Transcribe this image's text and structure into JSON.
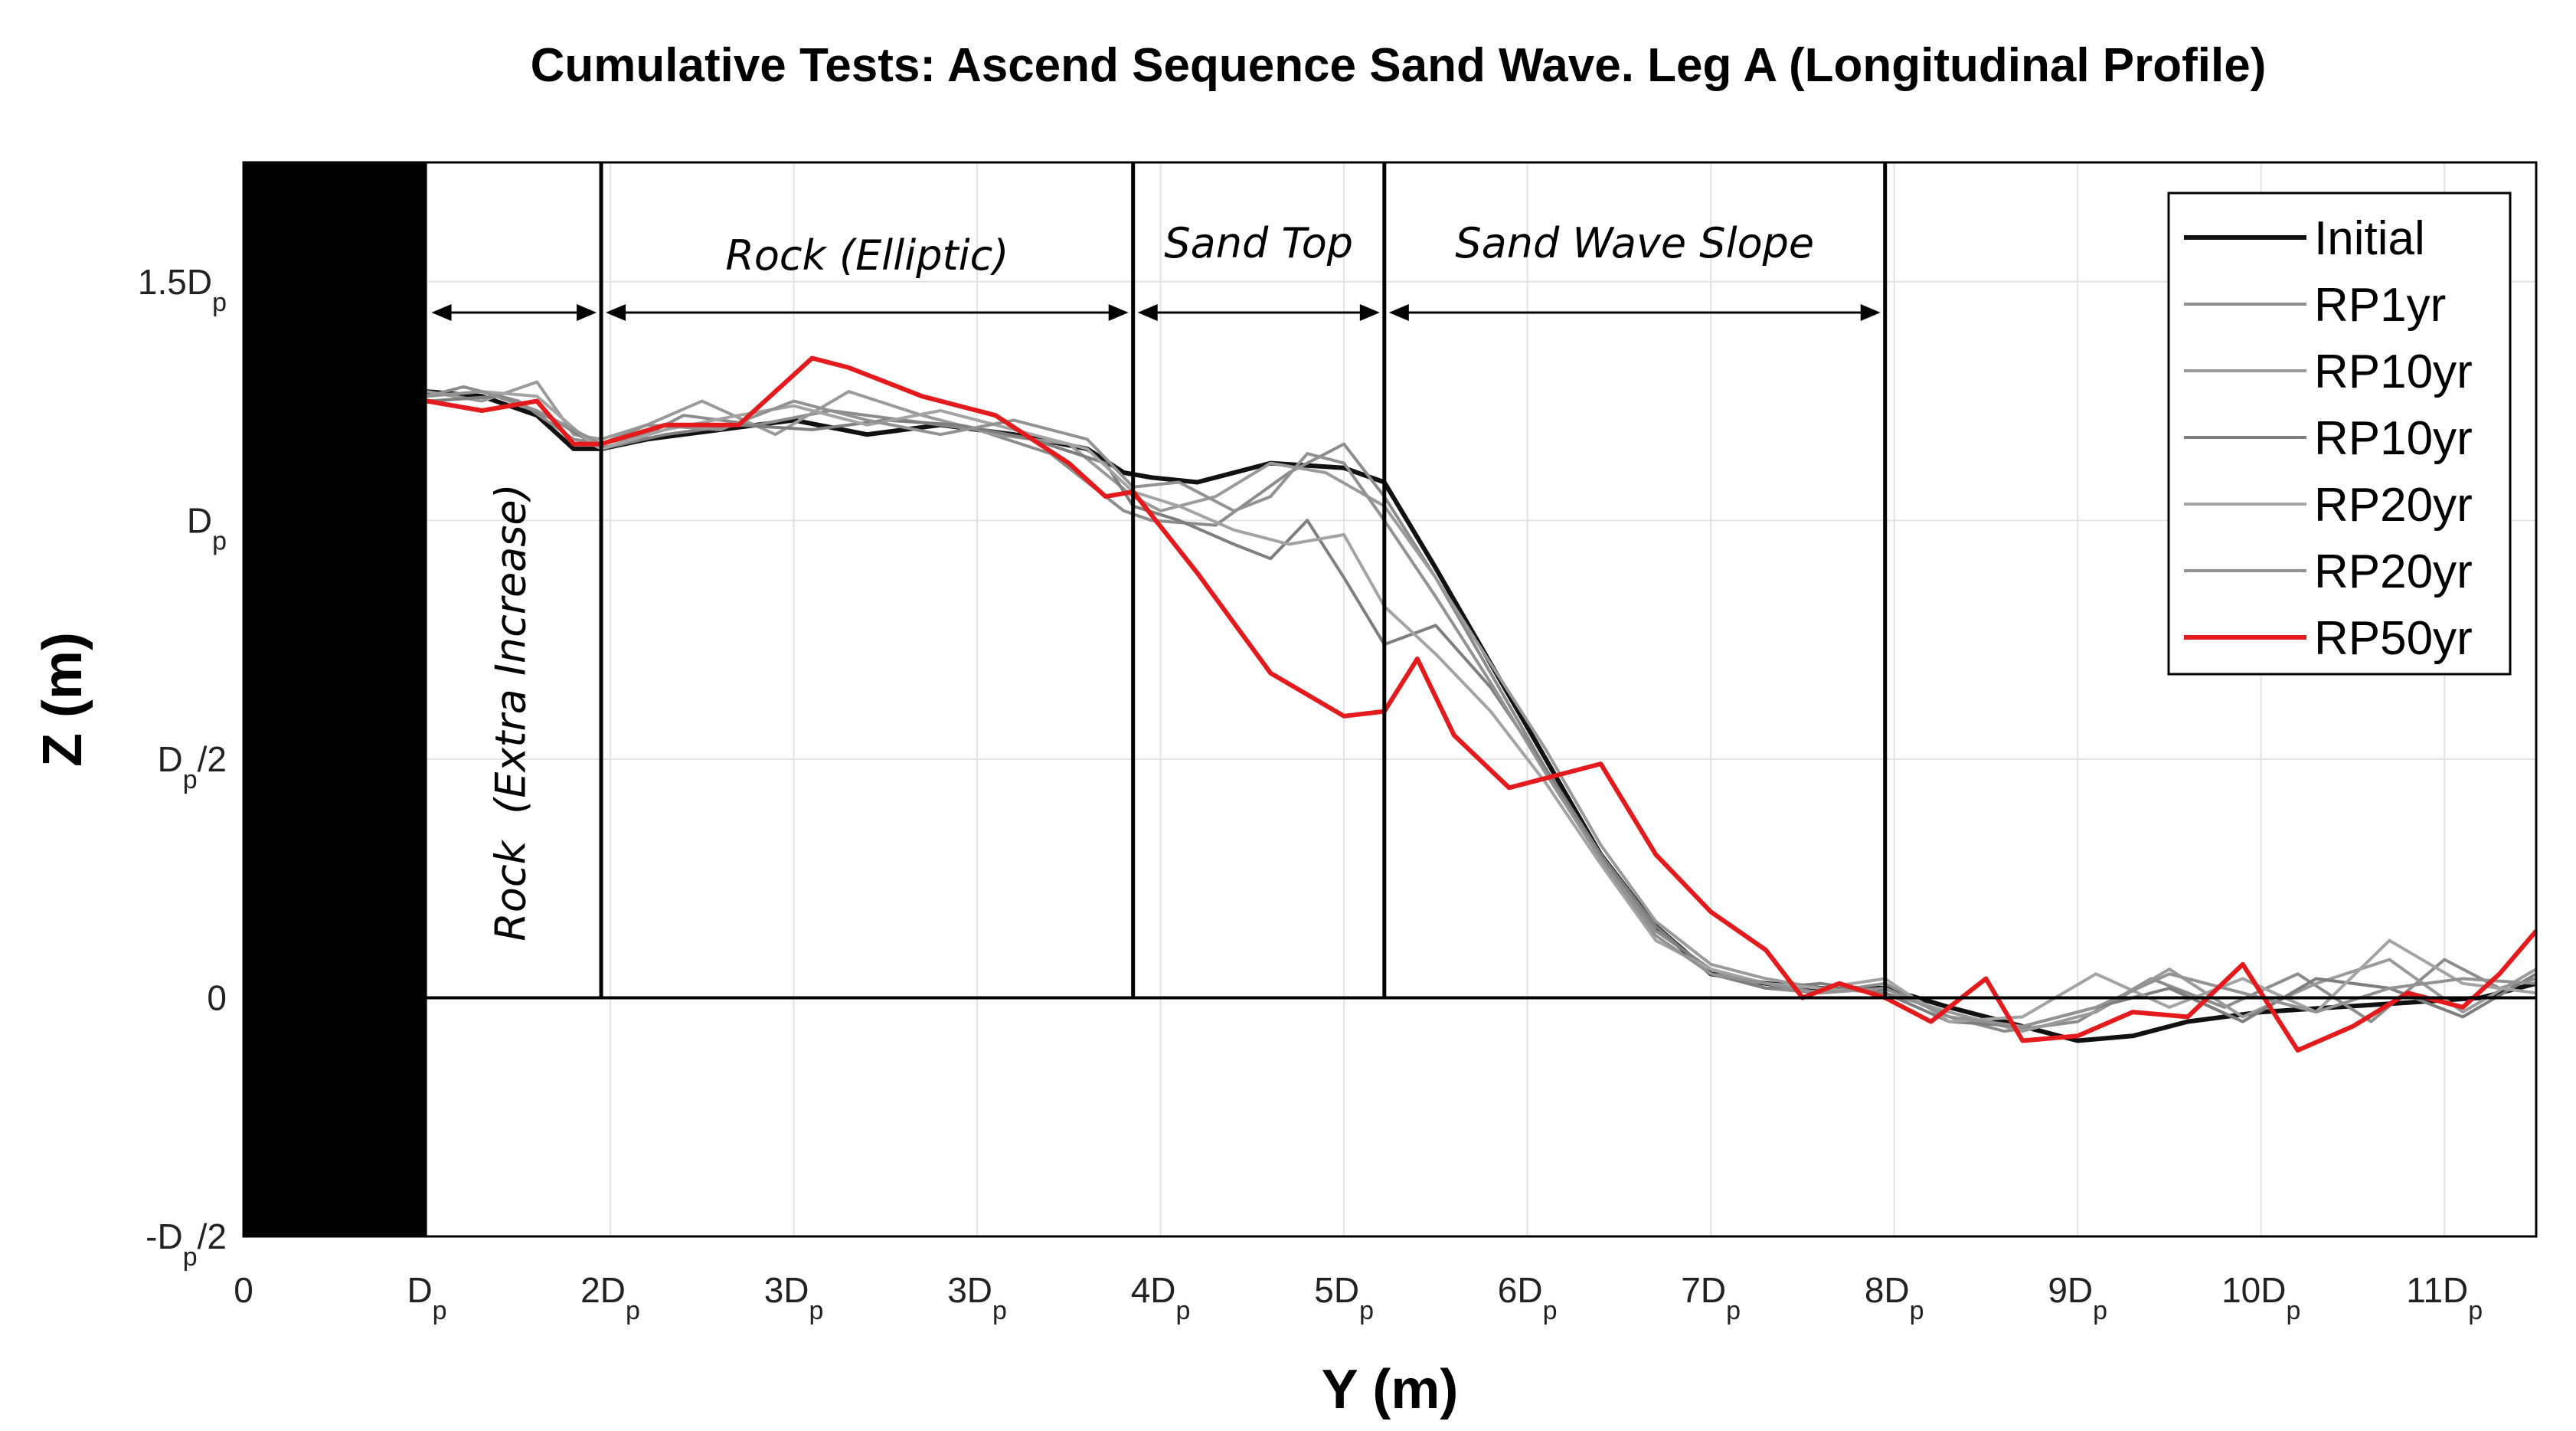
{
  "chart_data": {
    "type": "line",
    "title": "Cumulative Tests: Ascend Sequence Sand Wave. Leg A (Longitudinal Profile)",
    "xlabel": "Y (m)",
    "ylabel": "Z (m)",
    "xlim": [
      0,
      12.5
    ],
    "ylim": [
      -0.5,
      1.75
    ],
    "x_ticks": [
      {
        "v": 0,
        "main": "0",
        "sub": ""
      },
      {
        "v": 1,
        "main": "D",
        "sub": "p"
      },
      {
        "v": 2,
        "main": "2D",
        "sub": "p"
      },
      {
        "v": 3,
        "main": "3D",
        "sub": "p"
      },
      {
        "v": 4,
        "main": "3D",
        "sub": "p"
      },
      {
        "v": 5,
        "main": "4D",
        "sub": "p"
      },
      {
        "v": 6,
        "main": "5D",
        "sub": "p"
      },
      {
        "v": 7,
        "main": "6D",
        "sub": "p"
      },
      {
        "v": 8,
        "main": "7D",
        "sub": "p"
      },
      {
        "v": 9,
        "main": "8D",
        "sub": "p"
      },
      {
        "v": 10,
        "main": "9D",
        "sub": "p"
      },
      {
        "v": 11,
        "main": "10D",
        "sub": "p"
      },
      {
        "v": 12,
        "main": "11D",
        "sub": "p"
      }
    ],
    "y_ticks": [
      {
        "v": 1.5,
        "pre": "1.5D",
        "sub": "p",
        "post": ""
      },
      {
        "v": 1.0,
        "pre": "D",
        "sub": "p",
        "post": ""
      },
      {
        "v": 0.5,
        "pre": "D",
        "sub": "p",
        "post": "/2"
      },
      {
        "v": 0,
        "pre": "0",
        "sub": "",
        "post": ""
      },
      {
        "v": -0.5,
        "pre": "-D",
        "sub": "p",
        "post": "/2"
      }
    ],
    "regions": [
      {
        "label": "Rock  (Extra Increase)",
        "x0": 1.0,
        "x1": 1.95,
        "orientation": "vertical"
      },
      {
        "label": "Rock (Elliptic)",
        "x0": 1.95,
        "x1": 4.85,
        "orientation": "horizontal"
      },
      {
        "label": "Sand Top",
        "x0": 4.85,
        "x1": 6.22,
        "orientation": "horizontal"
      },
      {
        "label": "Sand Wave Slope",
        "x0": 6.22,
        "x1": 8.95,
        "orientation": "horizontal"
      }
    ],
    "boundaries": [
      1.95,
      4.85,
      6.22,
      8.95
    ],
    "wall": {
      "x0": 0,
      "x1": 1.0
    },
    "series": [
      {
        "name": "Initial",
        "color": "#111111",
        "width": 6,
        "x": [
          1.0,
          1.3,
          1.6,
          1.8,
          1.95,
          2.2,
          2.6,
          3.0,
          3.4,
          3.8,
          4.2,
          4.6,
          4.8,
          4.95,
          5.2,
          5.6,
          6.0,
          6.22,
          6.5,
          6.8,
          7.1,
          7.4,
          7.7,
          8.0,
          8.3,
          8.6,
          8.95,
          9.3,
          9.7,
          10.0,
          10.3,
          10.6,
          11.0,
          11.4,
          11.8,
          12.2,
          12.5
        ],
        "y": [
          1.27,
          1.26,
          1.22,
          1.15,
          1.15,
          1.17,
          1.19,
          1.21,
          1.18,
          1.2,
          1.18,
          1.15,
          1.1,
          1.09,
          1.08,
          1.12,
          1.11,
          1.08,
          0.9,
          0.7,
          0.5,
          0.3,
          0.15,
          0.05,
          0.03,
          0.02,
          0.02,
          -0.02,
          -0.06,
          -0.09,
          -0.08,
          -0.05,
          -0.03,
          -0.02,
          -0.01,
          0.0,
          0.03
        ]
      },
      {
        "name": "RP1yr",
        "color": "#8c8c8c",
        "width": 4,
        "x": [
          1.0,
          1.2,
          1.5,
          1.8,
          1.95,
          2.2,
          2.4,
          2.8,
          3.2,
          3.6,
          4.0,
          4.4,
          4.8,
          4.95,
          5.3,
          5.7,
          6.0,
          6.22,
          6.5,
          6.8,
          7.1,
          7.4,
          7.7,
          8.0,
          8.3,
          8.6,
          8.95,
          9.3,
          9.6,
          10.0,
          10.4,
          10.8,
          11.2,
          11.6,
          12.0,
          12.3,
          12.5
        ],
        "y": [
          1.26,
          1.28,
          1.25,
          1.17,
          1.16,
          1.18,
          1.22,
          1.2,
          1.23,
          1.21,
          1.19,
          1.14,
          1.02,
          1.0,
          0.99,
          1.1,
          1.16,
          1.05,
          0.88,
          0.68,
          0.48,
          0.3,
          0.14,
          0.06,
          0.02,
          0.01,
          0.03,
          -0.04,
          -0.07,
          -0.05,
          0.04,
          -0.02,
          0.05,
          -0.05,
          0.08,
          0.02,
          0.04
        ]
      },
      {
        "name": "RP10yr",
        "color": "#9a9a9a",
        "width": 4,
        "x": [
          1.0,
          1.3,
          1.6,
          1.8,
          1.95,
          2.2,
          2.5,
          2.9,
          3.3,
          3.7,
          4.1,
          4.5,
          4.85,
          5.0,
          5.3,
          5.6,
          5.9,
          6.22,
          6.5,
          6.8,
          7.1,
          7.4,
          7.7,
          8.0,
          8.3,
          8.6,
          8.95,
          9.3,
          9.7,
          10.1,
          10.5,
          10.9,
          11.3,
          11.7,
          12.1,
          12.5
        ],
        "y": [
          1.27,
          1.25,
          1.29,
          1.18,
          1.17,
          1.2,
          1.25,
          1.18,
          1.27,
          1.22,
          1.18,
          1.16,
          1.05,
          1.02,
          1.05,
          1.12,
          1.1,
          1.03,
          0.88,
          0.7,
          0.52,
          0.32,
          0.16,
          0.07,
          0.04,
          0.02,
          0.01,
          -0.03,
          -0.07,
          -0.03,
          0.06,
          -0.04,
          0.03,
          0.08,
          -0.03,
          0.06
        ]
      },
      {
        "name": "RP10yr",
        "color": "#7e7e7e",
        "width": 4,
        "x": [
          1.0,
          1.4,
          1.7,
          1.95,
          2.3,
          2.7,
          3.1,
          3.5,
          3.9,
          4.3,
          4.7,
          4.85,
          5.1,
          5.4,
          5.6,
          5.8,
          6.0,
          6.22,
          6.5,
          6.8,
          7.1,
          7.4,
          7.7,
          8.0,
          8.3,
          8.6,
          8.95,
          9.3,
          9.7,
          10.1,
          10.5,
          10.9,
          11.3,
          11.7,
          12.1,
          12.5
        ],
        "y": [
          1.25,
          1.26,
          1.21,
          1.15,
          1.18,
          1.2,
          1.19,
          1.21,
          1.2,
          1.17,
          1.12,
          1.03,
          1.0,
          0.95,
          0.92,
          1.0,
          0.88,
          0.74,
          0.78,
          0.65,
          0.48,
          0.3,
          0.15,
          0.05,
          0.02,
          0.03,
          0.01,
          -0.05,
          -0.06,
          -0.02,
          0.02,
          -0.05,
          0.04,
          0.02,
          -0.04,
          0.05
        ]
      },
      {
        "name": "RP20yr",
        "color": "#a3a3a3",
        "width": 4,
        "x": [
          1.0,
          1.3,
          1.6,
          1.9,
          1.95,
          2.3,
          2.7,
          3.0,
          3.4,
          3.8,
          4.2,
          4.6,
          4.85,
          5.1,
          5.4,
          5.7,
          6.0,
          6.22,
          6.5,
          6.8,
          7.1,
          7.4,
          7.7,
          8.0,
          8.3,
          8.6,
          8.95,
          9.3,
          9.7,
          10.1,
          10.5,
          10.9,
          11.3,
          11.7,
          12.1,
          12.5
        ],
        "y": [
          1.26,
          1.27,
          1.26,
          1.16,
          1.15,
          1.19,
          1.22,
          1.24,
          1.2,
          1.23,
          1.19,
          1.15,
          1.06,
          1.03,
          0.98,
          0.95,
          0.97,
          0.82,
          0.72,
          0.6,
          0.45,
          0.28,
          0.12,
          0.06,
          0.03,
          0.02,
          0.04,
          -0.05,
          -0.04,
          0.05,
          -0.02,
          0.04,
          -0.03,
          0.12,
          0.03,
          0.01
        ]
      },
      {
        "name": "RP20yr",
        "color": "#929292",
        "width": 4,
        "x": [
          1.0,
          1.3,
          1.6,
          1.95,
          2.2,
          2.6,
          3.0,
          3.4,
          3.8,
          4.2,
          4.6,
          4.85,
          5.1,
          5.4,
          5.6,
          5.8,
          6.0,
          6.22,
          6.5,
          6.8,
          7.1,
          7.4,
          7.7,
          8.0,
          8.3,
          8.6,
          8.95,
          9.3,
          9.7,
          10.1,
          10.5,
          10.9,
          11.3,
          11.7,
          12.1,
          12.5
        ],
        "y": [
          1.26,
          1.27,
          1.23,
          1.16,
          1.2,
          1.19,
          1.25,
          1.21,
          1.18,
          1.21,
          1.17,
          1.07,
          1.08,
          1.02,
          1.05,
          1.14,
          1.12,
          1.0,
          0.84,
          0.66,
          0.47,
          0.29,
          0.13,
          0.05,
          0.03,
          0.01,
          0.02,
          -0.04,
          -0.06,
          -0.02,
          0.05,
          0.01,
          -0.03,
          0.02,
          0.04,
          0.03
        ]
      },
      {
        "name": "RP50yr",
        "color": "#e41a1c",
        "width": 6,
        "x": [
          1.0,
          1.3,
          1.6,
          1.8,
          1.95,
          2.3,
          2.7,
          3.1,
          3.3,
          3.7,
          4.1,
          4.5,
          4.7,
          4.85,
          5.2,
          5.6,
          6.0,
          6.22,
          6.4,
          6.6,
          6.9,
          7.2,
          7.4,
          7.7,
          8.0,
          8.3,
          8.5,
          8.7,
          8.95,
          9.2,
          9.5,
          9.7,
          10.0,
          10.3,
          10.6,
          10.9,
          11.2,
          11.5,
          11.8,
          12.1,
          12.3,
          12.5
        ],
        "y": [
          1.25,
          1.23,
          1.25,
          1.16,
          1.16,
          1.2,
          1.2,
          1.34,
          1.32,
          1.26,
          1.22,
          1.12,
          1.05,
          1.06,
          0.89,
          0.68,
          0.59,
          0.6,
          0.71,
          0.55,
          0.44,
          0.47,
          0.49,
          0.3,
          0.18,
          0.1,
          0.0,
          0.03,
          0.0,
          -0.05,
          0.04,
          -0.09,
          -0.08,
          -0.03,
          -0.04,
          0.07,
          -0.11,
          -0.06,
          0.01,
          -0.02,
          0.05,
          0.14
        ]
      }
    ]
  }
}
